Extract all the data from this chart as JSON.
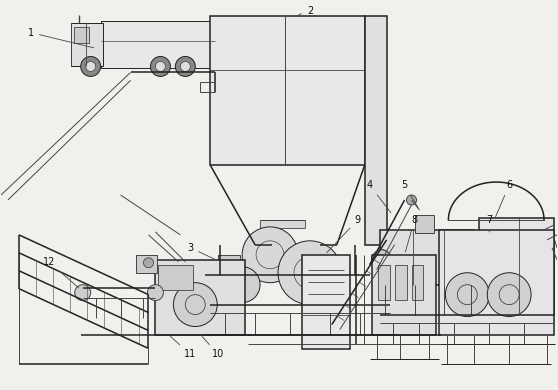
{
  "bg_color": "#f0f0ec",
  "lc": "#444444",
  "lc2": "#222222",
  "figsize": [
    5.58,
    3.9
  ],
  "dpi": 100
}
